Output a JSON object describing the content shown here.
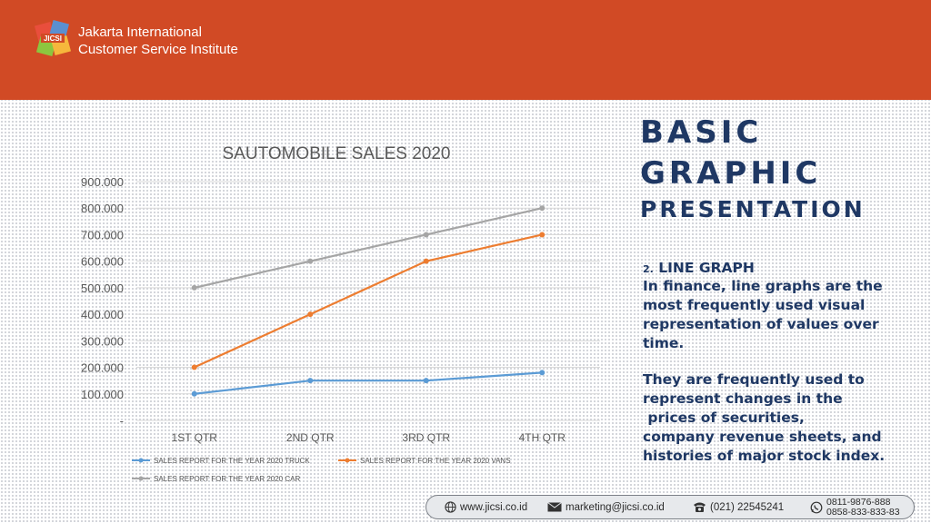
{
  "header": {
    "org_line1": "Jakarta International",
    "org_line2": "Customer Service Institute",
    "logo_text": "JICSI",
    "logo_colors": [
      "#e94e3c",
      "#5b8fd0",
      "#8cc63f",
      "#f6b73c"
    ],
    "background": "#d14a25"
  },
  "heading": {
    "line1": "BASIC",
    "line2": "GRAPHIC",
    "line3": "PRESENTATION",
    "color": "#1f3864"
  },
  "section": {
    "number": "2.",
    "title": "LINE GRAPH",
    "paragraph1": "In finance, line graphs are the most frequently used visual representation of values over time.",
    "paragraph2": "They are frequently used to represent changes in the\n prices of securities,\ncompany revenue sheets, and histories of major stock index."
  },
  "footer": {
    "website": "www.jicsi.co.id",
    "email": "marketing@jicsi.co.id",
    "phone": "(021) 22545241",
    "whatsapp1": "0811-9876-888",
    "whatsapp2": "0858-833-833-83"
  },
  "chart_data": {
    "type": "line",
    "title": "SAUTOMOBILE SALES  2020",
    "categories": [
      "1ST QTR",
      "2ND QTR",
      "3RD  QTR",
      "4TH  QTR"
    ],
    "ylim": [
      0,
      900
    ],
    "yticks": [
      0,
      100,
      200,
      300,
      400,
      500,
      600,
      700,
      800,
      900
    ],
    "ytick_labels": [
      "-",
      "100.000",
      "200.000",
      "300.000",
      "400.000",
      "500.000",
      "600.000",
      "700.000",
      "800.000",
      "900.000"
    ],
    "grid": true,
    "legend_position": "bottom",
    "series": [
      {
        "name": "SALES REPORT FOR THE YEAR 2020 TRUCK",
        "values": [
          100,
          150,
          150,
          180
        ],
        "color": "#5b9bd5"
      },
      {
        "name": "SALES REPORT FOR THE YEAR 2020 VANS",
        "values": [
          200,
          400,
          600,
          700
        ],
        "color": "#ed7d31"
      },
      {
        "name": "SALES REPORT FOR THE YEAR 2020 CAR",
        "values": [
          500,
          600,
          700,
          800
        ],
        "color": "#a5a5a5"
      }
    ]
  }
}
